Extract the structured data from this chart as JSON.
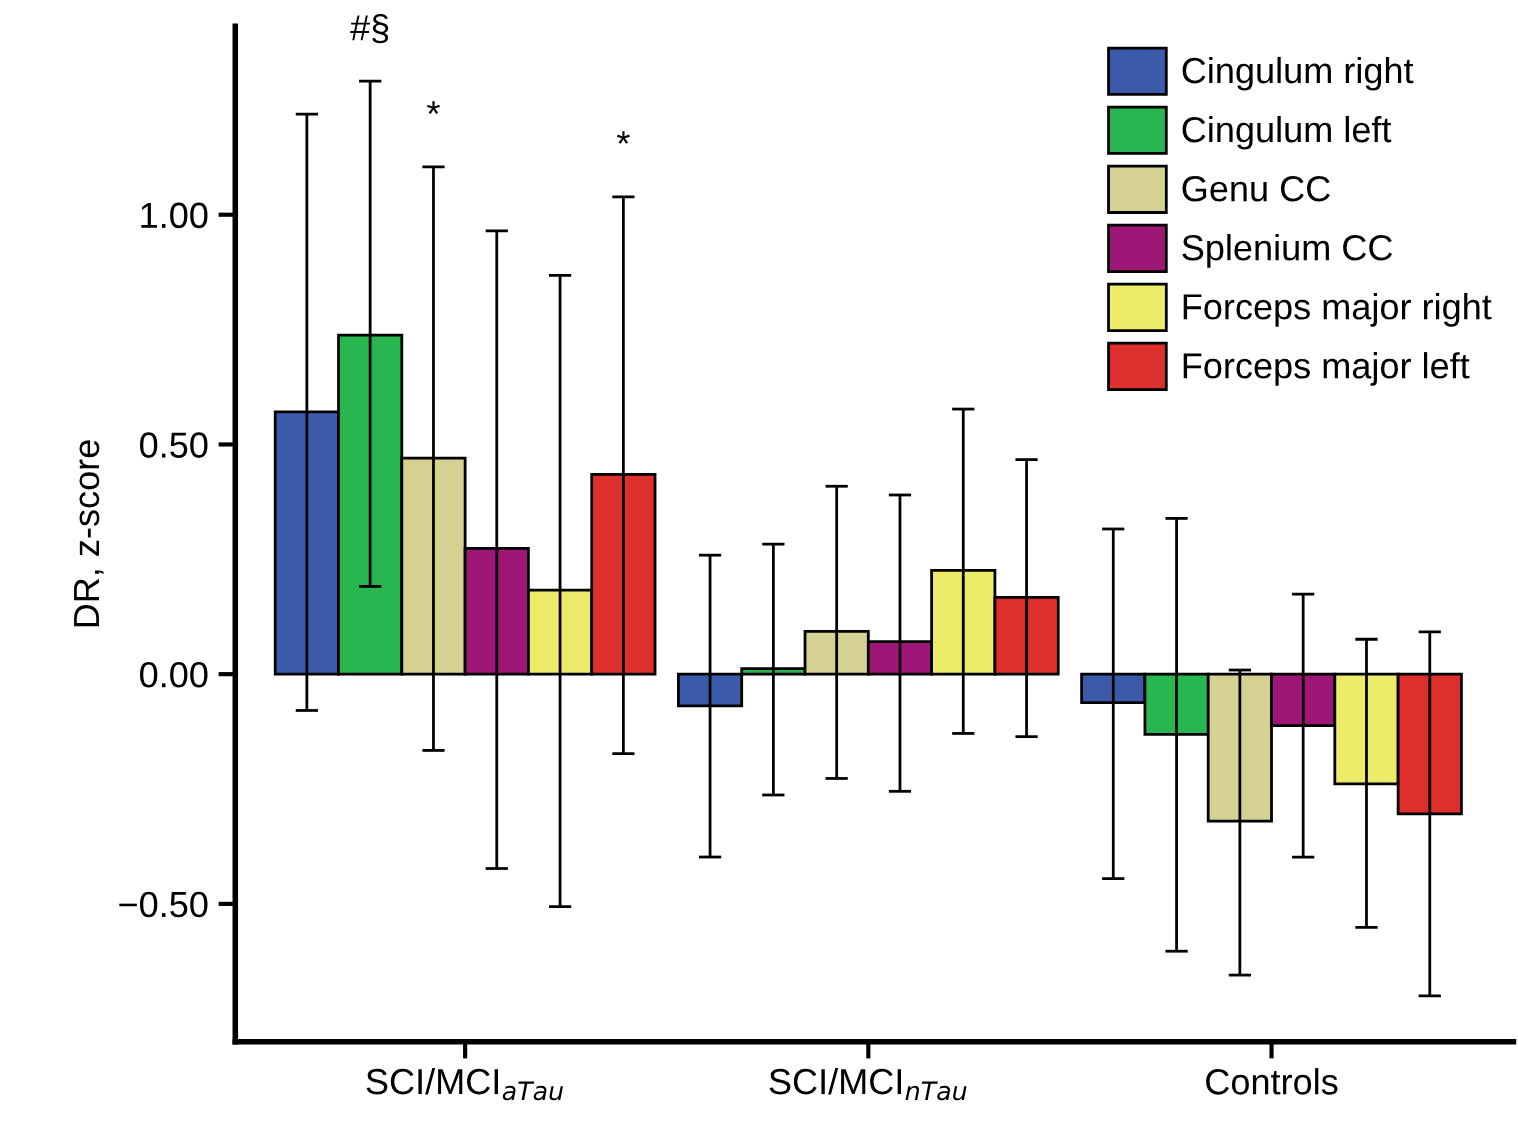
{
  "chart_data": {
    "type": "bar",
    "ylabel": "DR, z-score",
    "categories": [
      "SCI/MCI$_{aTau}$",
      "SCI/MCI$_{nTau}$",
      "Controls"
    ],
    "series": [
      {
        "name": "Cingulum right",
        "color": "#3b5aa9",
        "values": [
          0.571,
          -0.069,
          -0.062
        ],
        "errors": [
          [
            -0.079,
            1.219
          ],
          [
            -0.398,
            0.259
          ],
          [
            -0.445,
            0.316
          ]
        ]
      },
      {
        "name": "Cingulum left",
        "color": "#27b64f",
        "values": [
          0.738,
          0.012,
          -0.131
        ],
        "errors": [
          [
            0.191,
            1.291
          ],
          [
            -0.263,
            0.283
          ],
          [
            -0.603,
            0.339
          ]
        ]
      },
      {
        "name": "Genu CC",
        "color": "#d5d193",
        "values": [
          0.47,
          0.093,
          -0.32
        ],
        "errors": [
          [
            -0.166,
            1.104
          ],
          [
            -0.227,
            0.409
          ],
          [
            -0.655,
            0.009
          ]
        ]
      },
      {
        "name": "Splenium CC",
        "color": "#9e1777",
        "values": [
          0.274,
          0.071,
          -0.112
        ],
        "errors": [
          [
            -0.423,
            0.965
          ],
          [
            -0.255,
            0.39
          ],
          [
            -0.398,
            0.174
          ]
        ]
      },
      {
        "name": "Forceps major right",
        "color": "#ecec6a",
        "values": [
          0.183,
          0.226,
          -0.239
        ],
        "errors": [
          [
            -0.506,
            0.868
          ],
          [
            -0.129,
            0.577
          ],
          [
            -0.551,
            0.076
          ]
        ]
      },
      {
        "name": "Forceps major left",
        "color": "#dd2f2b",
        "values": [
          0.435,
          0.167,
          -0.304
        ],
        "errors": [
          [
            -0.173,
            1.039
          ],
          [
            -0.136,
            0.467
          ],
          [
            -0.7,
            0.092
          ]
        ]
      }
    ],
    "ylim": [
      -0.8,
      1.41
    ],
    "yticks": [
      {
        "value": -0.5,
        "label": "−0.50"
      },
      {
        "value": 0,
        "label": "0.00"
      },
      {
        "value": 0.5,
        "label": "0.50"
      },
      {
        "value": 1.0,
        "label": "1.00"
      }
    ],
    "annotations": [
      "#§",
      "*",
      "*"
    ],
    "grid": false,
    "legend": "top right"
  }
}
